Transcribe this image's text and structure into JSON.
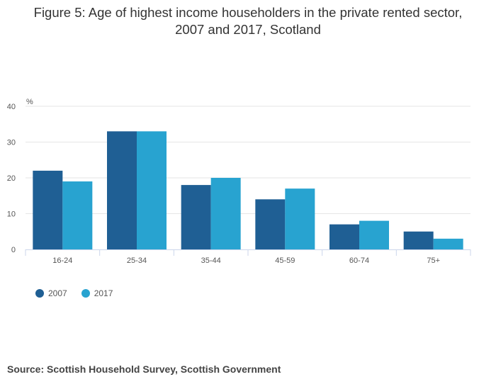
{
  "chart_data": {
    "type": "bar",
    "title_line1": "Figure 5: Age of highest income householders in the private rented sector,",
    "title_line2": "2007 and 2017, Scotland",
    "ylabel": "%",
    "ylim": [
      0,
      40
    ],
    "yticks": [
      0,
      10,
      20,
      30,
      40
    ],
    "grid": true,
    "legend_position": "bottom-left",
    "categories": [
      "16-24",
      "25-34",
      "35-44",
      "45-59",
      "60-74",
      "75+"
    ],
    "series": [
      {
        "name": "2007",
        "color": "#1f5f94",
        "values": [
          22,
          33,
          18,
          14,
          7,
          5
        ]
      },
      {
        "name": "2017",
        "color": "#28a3d0",
        "values": [
          19,
          33,
          20,
          17,
          8,
          3
        ]
      }
    ]
  },
  "source": "Source: Scottish Household Survey, Scottish Government"
}
